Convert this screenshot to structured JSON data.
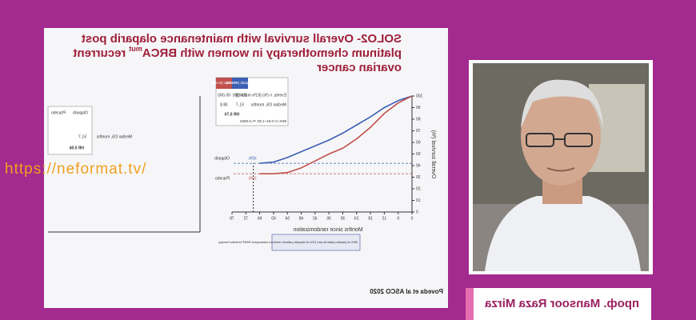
{
  "watermark": "https://neformat.tv/",
  "slide": {
    "title": {
      "line1": "SOLO2- Overall survival with maintenance olaparib post",
      "line2": "platinum chemotherapy in women with BRCA",
      "sup": "mut",
      "line2_end": "recurrent",
      "line3": "ovarian cancer"
    },
    "citation": "Poveda et al ASCO 2020",
    "chart": {
      "y_label": "Overall survival (%)",
      "x_label": "Months since randomization",
      "xlim": [
        0,
        78
      ],
      "ylim": [
        0,
        100
      ],
      "xticks": [
        0,
        6,
        12,
        18,
        24,
        30,
        36,
        42,
        48,
        54,
        60,
        66,
        72,
        78
      ],
      "yticks": [
        0,
        10,
        20,
        30,
        40,
        50,
        60,
        70,
        80,
        90,
        100
      ],
      "x": [
        0,
        6,
        12,
        18,
        24,
        30,
        36,
        42,
        48,
        54,
        60,
        66
      ],
      "series": [
        {
          "name": "Olaparib",
          "color": "#3c5fb4",
          "values": [
            100,
            96,
            90,
            82,
            75,
            68,
            62,
            57,
            52,
            47,
            43,
            42
          ]
        },
        {
          "name": "Placebo",
          "color": "#c0504d",
          "values": [
            100,
            94,
            85,
            73,
            63,
            55,
            50,
            44,
            38,
            34,
            33,
            33
          ]
        }
      ],
      "annotations": [
        "43%",
        "33%"
      ],
      "table": {
        "header": [
          "Olaparib (N=196)",
          "Placebo (N=99)"
        ],
        "rows": [
          [
            "Events, n (%) [61% maturity]",
            "116 (59)",
            "65 (66)"
          ],
          [
            "Median OS, months",
            "51.7",
            "38.8"
          ]
        ],
        "hr": "HR 0.74",
        "ci": "95% CI 0.54–1.00; P=0.0563"
      },
      "note": "38% of placebo patients and 10% of olaparib patients received subsequent PARP inhibitor therapy"
    },
    "second_chart": {
      "header": [
        "Olaparib",
        "Placebo"
      ],
      "median_label": "Median OS, months",
      "median": "51.7",
      "hr": "HR 0.56"
    }
  },
  "speaker": {
    "name": "проф. Mansoor Raza Mirza"
  }
}
